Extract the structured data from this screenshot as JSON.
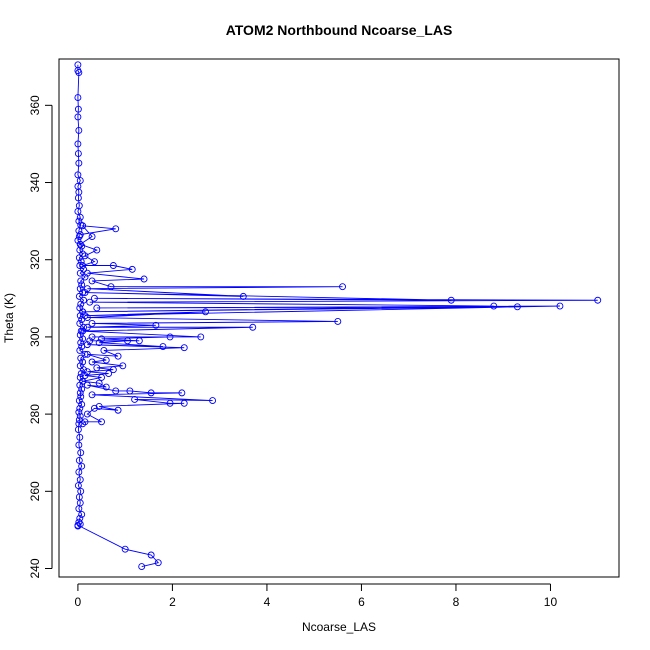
{
  "chart_data": {
    "type": "line",
    "title": "ATOM2 Northbound Ncoarse_LAS",
    "xlabel": "Ncoarse_LAS",
    "ylabel": "Theta (K)",
    "xlim": [
      -0.4,
      11.45
    ],
    "ylim": [
      237.8,
      372
    ],
    "xticks": [
      0,
      2,
      4,
      6,
      8,
      10
    ],
    "yticks": [
      240,
      260,
      280,
      300,
      320,
      340,
      360
    ],
    "grid": false,
    "marker": "open-circle",
    "line_color": "#0000ff",
    "series": [
      {
        "points": [
          [
            0.0,
            370.5
          ],
          [
            0.0,
            369.0
          ],
          [
            0.02,
            368.5
          ],
          [
            0.0,
            362.0
          ],
          [
            0.01,
            359.0
          ],
          [
            0.0,
            357.0
          ],
          [
            0.02,
            353.5
          ],
          [
            0.0,
            350.0
          ],
          [
            0.01,
            347.5
          ],
          [
            0.02,
            345.0
          ],
          [
            0.0,
            342.0
          ],
          [
            0.05,
            340.5
          ],
          [
            0.0,
            339.0
          ],
          [
            0.02,
            337.5
          ],
          [
            0.01,
            336.0
          ],
          [
            0.03,
            334.0
          ],
          [
            0.0,
            332.5
          ],
          [
            0.05,
            331.0
          ],
          [
            0.02,
            330.0
          ],
          [
            0.06,
            329.0
          ],
          [
            0.02,
            327.5
          ],
          [
            0.03,
            326.0
          ],
          [
            0.0,
            325.0
          ],
          [
            0.05,
            324.0
          ],
          [
            0.08,
            323.5
          ],
          [
            0.04,
            322.5
          ],
          [
            0.1,
            321.5
          ],
          [
            0.03,
            320.5
          ],
          [
            0.07,
            319.5
          ],
          [
            0.04,
            318.5
          ],
          [
            0.12,
            317.5
          ],
          [
            0.05,
            316.5
          ],
          [
            0.15,
            315.5
          ],
          [
            0.06,
            314.5
          ],
          [
            0.08,
            313.5
          ],
          [
            0.05,
            312.5
          ],
          [
            0.1,
            311.5
          ],
          [
            0.03,
            310.5
          ],
          [
            0.12,
            309.5
          ],
          [
            0.06,
            308.5
          ],
          [
            0.04,
            307.5
          ],
          [
            0.1,
            306.5
          ],
          [
            0.05,
            305.5
          ],
          [
            0.08,
            304.5
          ],
          [
            0.04,
            303.5
          ],
          [
            0.12,
            302.5
          ],
          [
            0.07,
            301.5
          ],
          [
            0.05,
            300.5
          ],
          [
            0.1,
            299.5
          ],
          [
            0.06,
            298.5
          ],
          [
            0.08,
            297.5
          ],
          [
            0.04,
            296.5
          ],
          [
            0.15,
            295.5
          ],
          [
            0.06,
            294.5
          ],
          [
            0.1,
            293.5
          ],
          [
            0.05,
            292.5
          ],
          [
            0.12,
            291.5
          ],
          [
            0.07,
            290.5
          ],
          [
            0.05,
            289.5
          ],
          [
            0.1,
            288.5
          ],
          [
            0.04,
            287.5
          ],
          [
            0.08,
            286.5
          ],
          [
            0.05,
            285.5
          ],
          [
            0.06,
            284.5
          ],
          [
            0.03,
            283.5
          ],
          [
            0.08,
            282.5
          ],
          [
            0.04,
            281.5
          ],
          [
            0.02,
            280.5
          ],
          [
            0.05,
            279.5
          ],
          [
            0.03,
            278.5
          ],
          [
            0.02,
            277.5
          ],
          [
            0.01,
            276.0
          ],
          [
            0.04,
            274.0
          ],
          [
            0.02,
            272.0
          ],
          [
            0.06,
            270.0
          ],
          [
            0.03,
            268.0
          ],
          [
            0.08,
            266.5
          ],
          [
            0.02,
            265.0
          ],
          [
            0.05,
            263.0
          ],
          [
            0.01,
            261.5
          ],
          [
            0.06,
            260.0
          ],
          [
            0.03,
            258.5
          ],
          [
            0.05,
            257.0
          ],
          [
            0.02,
            255.5
          ],
          [
            0.08,
            254.0
          ],
          [
            0.04,
            253.0
          ],
          [
            0.02,
            252.0
          ],
          [
            0.05,
            251.5
          ],
          [
            0.0,
            251.0
          ]
        ]
      },
      {
        "points": [
          [
            0.0,
            251.2
          ],
          [
            1.0,
            245.0
          ],
          [
            1.55,
            243.5
          ],
          [
            1.7,
            241.5
          ],
          [
            1.35,
            240.5
          ]
        ]
      },
      {
        "points": [
          [
            0.05,
            326.5
          ],
          [
            0.8,
            328.0
          ],
          [
            0.1,
            328.8
          ],
          [
            0.3,
            326.0
          ],
          [
            0.05,
            324.0
          ],
          [
            0.4,
            322.5
          ],
          [
            0.15,
            321.0
          ],
          [
            0.35,
            319.5
          ],
          [
            0.1,
            318.5
          ],
          [
            0.75,
            318.5
          ],
          [
            1.15,
            317.5
          ],
          [
            0.2,
            316.5
          ],
          [
            1.4,
            315.0
          ],
          [
            0.3,
            314.5
          ],
          [
            0.7,
            313.0
          ],
          [
            5.6,
            313.0
          ],
          [
            0.2,
            312.5
          ],
          [
            3.5,
            310.5
          ],
          [
            0.15,
            311.5
          ],
          [
            7.9,
            309.5
          ],
          [
            0.35,
            310.0
          ],
          [
            11.0,
            309.5
          ],
          [
            0.25,
            309.0
          ],
          [
            8.8,
            308.0
          ],
          [
            0.1,
            306.5
          ],
          [
            9.3,
            307.8
          ],
          [
            0.4,
            307.5
          ],
          [
            10.2,
            308.0
          ],
          [
            0.15,
            305.5
          ],
          [
            2.7,
            306.5
          ],
          [
            0.2,
            305.0
          ],
          [
            5.5,
            304.0
          ],
          [
            0.3,
            303.5
          ],
          [
            1.65,
            303.0
          ],
          [
            0.2,
            302.5
          ],
          [
            3.7,
            302.5
          ],
          [
            0.1,
            301.5
          ],
          [
            2.6,
            300.0
          ],
          [
            0.3,
            300.0
          ],
          [
            1.95,
            300.0
          ],
          [
            0.5,
            299.5
          ],
          [
            1.3,
            299.0
          ],
          [
            0.25,
            299.0
          ],
          [
            1.05,
            299.0
          ],
          [
            0.45,
            298.5
          ],
          [
            1.8,
            297.5
          ],
          [
            0.2,
            298.0
          ],
          [
            2.25,
            297.2
          ],
          [
            0.55,
            296.5
          ],
          [
            0.85,
            295.0
          ],
          [
            0.2,
            295.5
          ],
          [
            0.6,
            294.0
          ],
          [
            0.3,
            293.5
          ],
          [
            0.95,
            292.5
          ],
          [
            0.4,
            292.0
          ],
          [
            0.75,
            291.5
          ],
          [
            0.2,
            291.0
          ],
          [
            0.65,
            290.5
          ],
          [
            0.15,
            290.0
          ],
          [
            0.5,
            289.5
          ],
          [
            0.1,
            288.5
          ],
          [
            0.45,
            288.0
          ],
          [
            0.6,
            287.0
          ],
          [
            0.2,
            287.5
          ],
          [
            0.8,
            286.0
          ],
          [
            1.1,
            286.0
          ],
          [
            1.55,
            285.5
          ],
          [
            2.2,
            285.5
          ],
          [
            0.3,
            285.0
          ],
          [
            2.85,
            283.5
          ],
          [
            1.2,
            283.8
          ],
          [
            1.95,
            282.8
          ],
          [
            2.25,
            282.8
          ],
          [
            0.45,
            282.0
          ],
          [
            0.85,
            281.0
          ],
          [
            0.35,
            281.5
          ],
          [
            0.2,
            280.0
          ],
          [
            0.5,
            278.0
          ],
          [
            0.15,
            278.0
          ],
          [
            0.1,
            277.5
          ]
        ]
      }
    ]
  }
}
